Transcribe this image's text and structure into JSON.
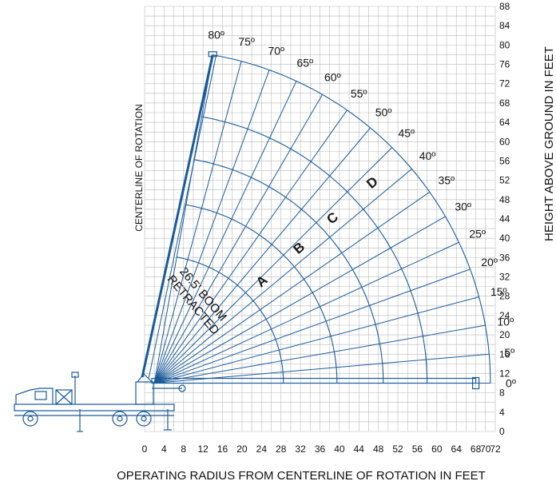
{
  "chart_data": {
    "type": "range-diagram",
    "xlabel": "OPERATING RADIUS FROM CENTERLINE OF ROTATION IN FEET",
    "ylabel": "HEIGHT ABOVE GROUND IN FEET",
    "centerline_label": "CENTERLINE OF ROTATION",
    "x_ticks": [
      0,
      4,
      8,
      12,
      16,
      20,
      24,
      28,
      32,
      36,
      40,
      44,
      48,
      52,
      56,
      60,
      64,
      68,
      70,
      72
    ],
    "y_ticks": [
      0,
      4,
      8,
      12,
      16,
      20,
      24,
      28,
      32,
      36,
      40,
      44,
      48,
      52,
      56,
      60,
      64,
      68,
      72,
      76,
      80,
      84,
      88
    ],
    "xlim": [
      0,
      72
    ],
    "ylim": [
      0,
      88
    ],
    "boom_pivot": {
      "x": 0,
      "y": 10
    },
    "boom_length_max_ft": 69,
    "angles_deg": [
      0,
      5,
      10,
      15,
      20,
      25,
      30,
      35,
      40,
      45,
      50,
      55,
      60,
      65,
      70,
      75,
      80
    ],
    "angle_labels": [
      "0º",
      "5º",
      "10º",
      "15º",
      "20º",
      "25º",
      "30º",
      "35º",
      "40º",
      "45º",
      "50º",
      "55º",
      "60º",
      "65º",
      "70º",
      "75º",
      "80º"
    ],
    "zones": [
      {
        "label": "A",
        "radius_ft": 37.5
      },
      {
        "label": "B",
        "radius_ft": 47
      },
      {
        "label": "C",
        "radius_ft": 56
      },
      {
        "label": "D",
        "radius_ft": 69
      }
    ],
    "inner_arc_radius_ft": 26.5,
    "boom_note": [
      "26.5' BOOM",
      "RETRACTED"
    ]
  },
  "colors": {
    "grid": "#b9b9b9",
    "lines": "#1a5a9a",
    "text": "#111111"
  },
  "icons": [
    "truck-crane-icon"
  ]
}
